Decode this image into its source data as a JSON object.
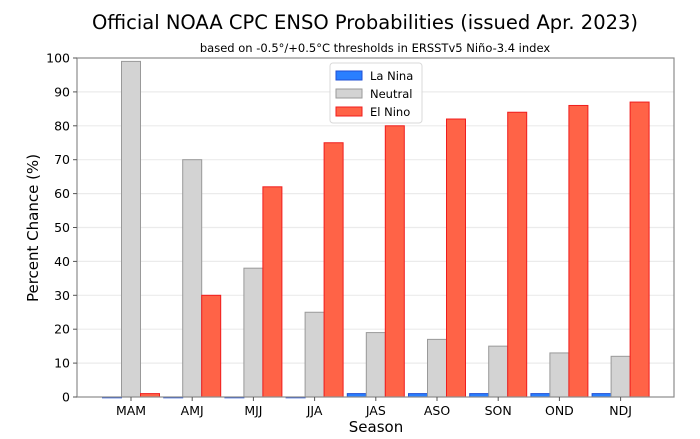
{
  "chart_data": {
    "type": "bar",
    "title": "Official NOAA CPC ENSO Probabilities (issued Apr. 2023)",
    "subtitle": "based on -0.5°/+0.5°C thresholds in ERSSTv5 Niño-3.4 index",
    "xlabel": "Season",
    "ylabel": "Percent Chance (%)",
    "ylim": [
      0,
      100
    ],
    "yticks": [
      0,
      10,
      20,
      30,
      40,
      50,
      60,
      70,
      80,
      90,
      100
    ],
    "grid": "horizontal",
    "legend_position": "top-center",
    "categories": [
      "MAM",
      "AMJ",
      "MJJ",
      "JJA",
      "JAS",
      "ASO",
      "SON",
      "OND",
      "NDJ"
    ],
    "series": [
      {
        "name": "La Nina",
        "color": "#2a7fff",
        "edge": "#1f4fd6",
        "values": [
          0,
          0,
          0,
          0,
          1,
          1,
          1,
          1,
          1
        ]
      },
      {
        "name": "Neutral",
        "color": "#d3d3d3",
        "edge": "#999999",
        "values": [
          99,
          70,
          38,
          25,
          19,
          17,
          15,
          13,
          12
        ]
      },
      {
        "name": "El Nino",
        "color": "#ff6347",
        "edge": "#f01d1d",
        "values": [
          1,
          30,
          62,
          75,
          80,
          82,
          84,
          86,
          87
        ]
      }
    ]
  }
}
